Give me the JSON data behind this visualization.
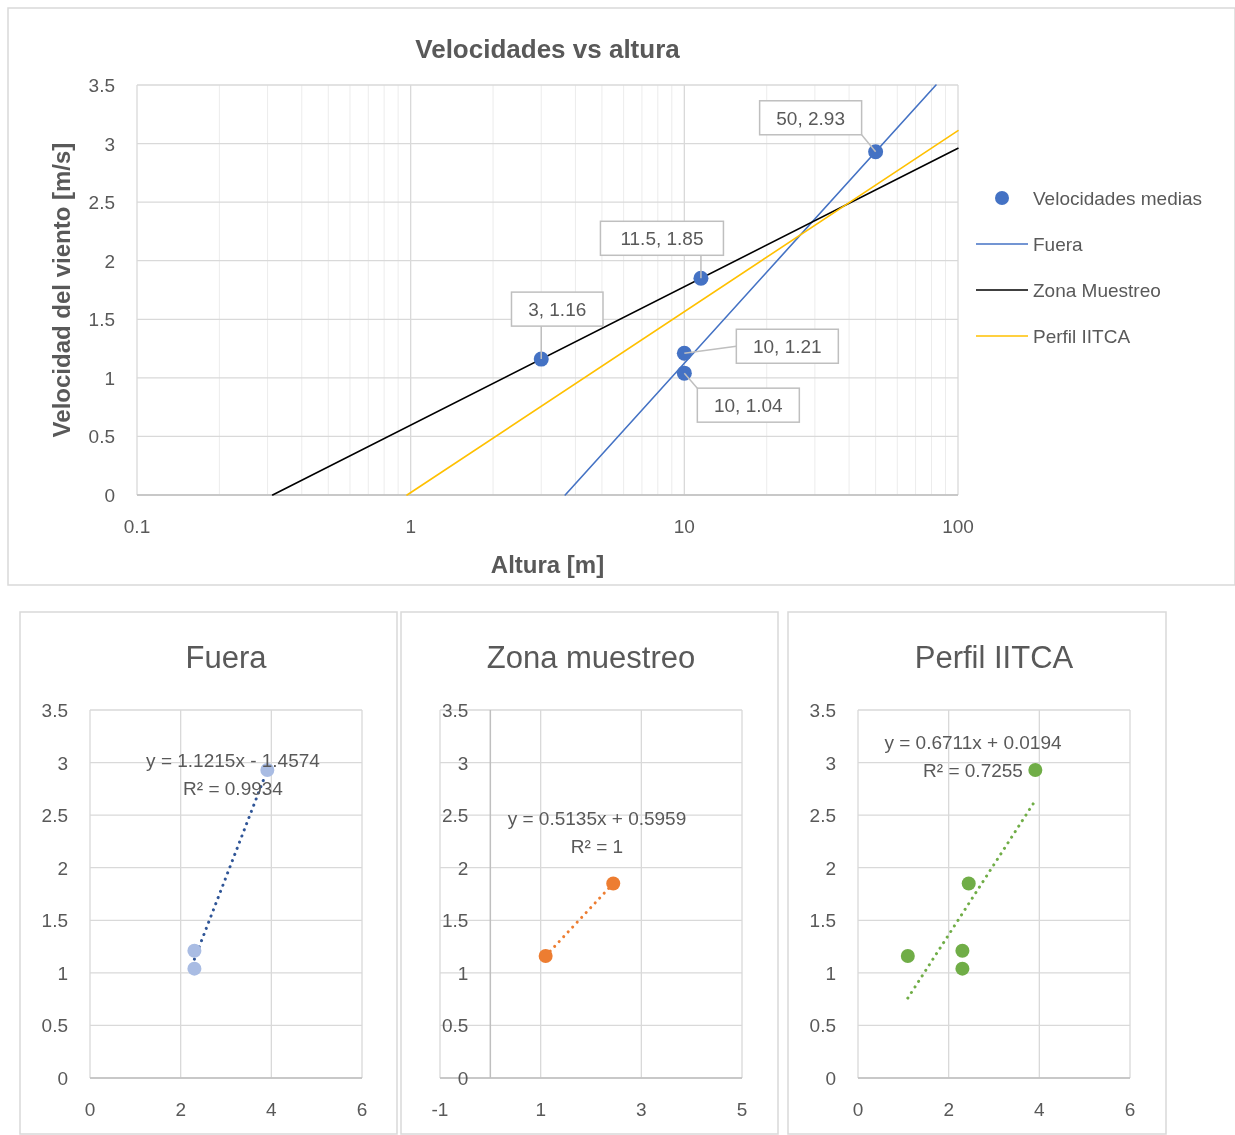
{
  "chart_data": [
    {
      "type": "scatter",
      "title": "Velocidades vs altura",
      "xlabel": "Altura [m]",
      "ylabel": "Velocidad del viento [m/s]",
      "log": "x",
      "xlim": [
        0.1,
        100
      ],
      "xticks": [
        0.1,
        1,
        10,
        100
      ],
      "ylim": [
        0,
        3.5
      ],
      "yticks": [
        0,
        0.5,
        1,
        1.5,
        2,
        2.5,
        3,
        3.5
      ],
      "grid": true,
      "legend": "right",
      "series": [
        {
          "name": "Velocidades medias",
          "marker": "circle",
          "color": "#4472c4",
          "x": [
            3,
            10,
            10,
            11.5,
            50
          ],
          "values": [
            1.16,
            1.04,
            1.21,
            1.85,
            2.93
          ]
        },
        {
          "name": "Fuera",
          "type": "line",
          "marker": "none",
          "color": "#4472c4",
          "x": [
            3.67,
            83.1
          ],
          "values": [
            0,
            3.5
          ]
        },
        {
          "name": "Zona Muestreo",
          "type": "line",
          "marker": "none",
          "color": "#000000",
          "x": [
            0.313,
            100
          ],
          "values": [
            0,
            2.96
          ]
        },
        {
          "name": "Perfil IITCA",
          "type": "line",
          "marker": "none",
          "color": "#ffc000",
          "x": [
            0.97,
            100
          ],
          "values": [
            0,
            3.11
          ]
        }
      ],
      "annotations": [
        {
          "text": "3, 1.16",
          "x": 3,
          "y": 1.16
        },
        {
          "text": "11.5, 1.85",
          "x": 11.5,
          "y": 1.85
        },
        {
          "text": "10, 1.21",
          "x": 10,
          "y": 1.21
        },
        {
          "text": "10, 1.04",
          "x": 10,
          "y": 1.04
        },
        {
          "text": "50, 2.93",
          "x": 50,
          "y": 2.93
        }
      ]
    },
    {
      "type": "scatter",
      "title": "Fuera",
      "xlim": [
        0,
        6
      ],
      "xticks": [
        0,
        2,
        4,
        6
      ],
      "ylim": [
        0,
        3.5
      ],
      "yticks": [
        0,
        0.5,
        1,
        1.5,
        2,
        2.5,
        3,
        3.5
      ],
      "grid": true,
      "series": [
        {
          "marker": "circle",
          "color": "#a9bce3",
          "x": [
            2.303,
            2.303,
            3.912
          ],
          "values": [
            1.21,
            1.04,
            2.93
          ]
        },
        {
          "type": "line",
          "marker": "none",
          "line_style": "dotted",
          "color": "#2f5597",
          "x": [
            2.303,
            3.912
          ],
          "values": [
            1.13,
            2.93
          ]
        }
      ],
      "annotations": [
        "y = 1.1215x - 1.4574",
        "R² = 0.9934"
      ]
    },
    {
      "type": "scatter",
      "title": "Zona muestreo",
      "xlim": [
        -1,
        5
      ],
      "xticks": [
        -1,
        1,
        3,
        5
      ],
      "ylim": [
        0,
        3.5
      ],
      "yticks": [
        0,
        0.5,
        1,
        1.5,
        2,
        2.5,
        3,
        3.5
      ],
      "grid": true,
      "series": [
        {
          "marker": "circle",
          "color": "#ed7d31",
          "x": [
            1.099,
            2.442
          ],
          "values": [
            1.16,
            1.85
          ]
        },
        {
          "type": "line",
          "marker": "none",
          "line_style": "dotted",
          "color": "#ed7d31",
          "x": [
            1.099,
            2.442
          ],
          "values": [
            1.16,
            1.85
          ]
        }
      ],
      "annotations": [
        "y = 0.5135x + 0.5959",
        "R² = 1"
      ]
    },
    {
      "type": "scatter",
      "title": "Perfil IITCA",
      "xlim": [
        0,
        6
      ],
      "xticks": [
        0,
        2,
        4,
        6
      ],
      "ylim": [
        0,
        3.5
      ],
      "yticks": [
        0,
        0.5,
        1,
        1.5,
        2,
        2.5,
        3,
        3.5
      ],
      "grid": true,
      "series": [
        {
          "marker": "circle",
          "color": "#70ad47",
          "x": [
            1.099,
            2.303,
            2.303,
            2.442,
            3.912
          ],
          "values": [
            1.16,
            1.04,
            1.21,
            1.85,
            2.93
          ]
        },
        {
          "type": "line",
          "marker": "none",
          "line_style": "dotted",
          "color": "#70ad47",
          "x": [
            1.099,
            3.912
          ],
          "values": [
            0.76,
            2.64
          ]
        }
      ],
      "annotations": [
        "y = 0.6711x + 0.0194",
        "R² = 0.7255"
      ]
    }
  ]
}
